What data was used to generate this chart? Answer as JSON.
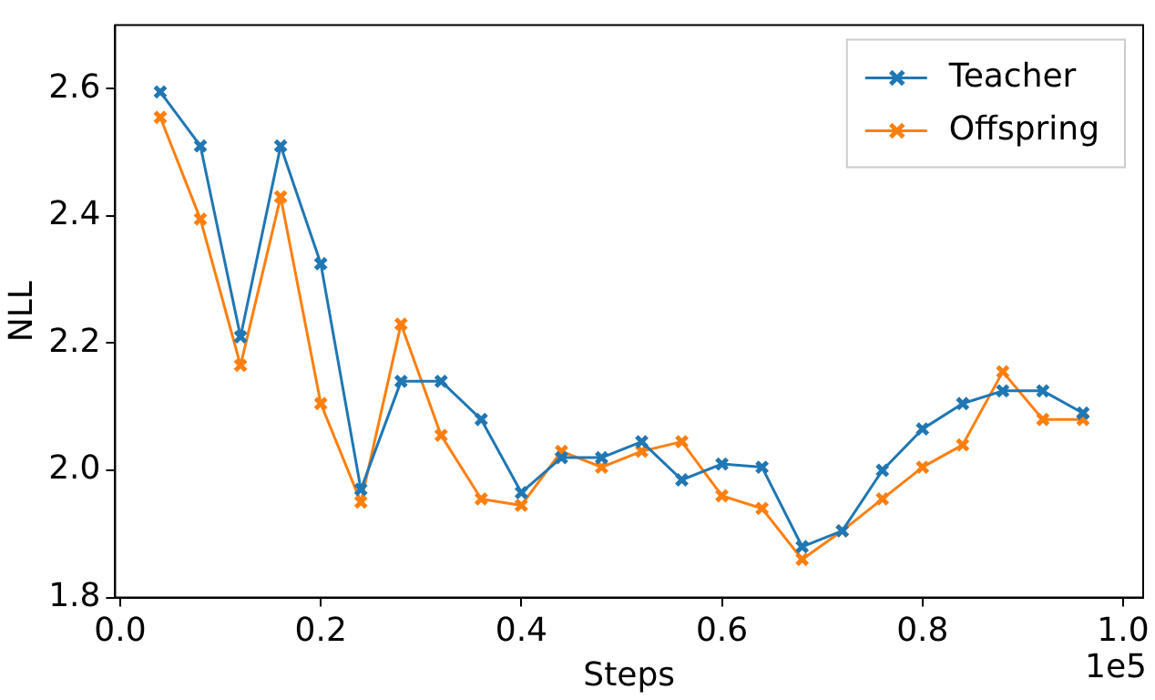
{
  "chart_data": {
    "type": "line",
    "xlabel": "Steps",
    "ylabel": "NLL",
    "annotations": [
      "1e5"
    ],
    "x": [
      0.04,
      0.08,
      0.12,
      0.16,
      0.2,
      0.24,
      0.28,
      0.32,
      0.36,
      0.4,
      0.44,
      0.48,
      0.52,
      0.56,
      0.6,
      0.64,
      0.68,
      0.72,
      0.76,
      0.8,
      0.84,
      0.88,
      0.92,
      0.96
    ],
    "series": [
      {
        "name": "Teacher",
        "color": "#1f77b4",
        "values": [
          2.595,
          2.51,
          2.21,
          2.51,
          2.325,
          1.97,
          2.14,
          2.14,
          2.08,
          1.965,
          2.02,
          2.02,
          2.045,
          1.985,
          2.01,
          2.005,
          1.88,
          1.905,
          2.0,
          2.065,
          2.105,
          2.125,
          2.125,
          2.09
        ]
      },
      {
        "name": "Offspring",
        "color": "#ff7f0e",
        "values": [
          2.555,
          2.395,
          2.165,
          2.43,
          2.105,
          1.95,
          2.23,
          2.055,
          1.955,
          1.945,
          2.03,
          2.005,
          2.03,
          2.045,
          1.96,
          1.94,
          1.86,
          1.905,
          1.955,
          2.005,
          2.04,
          2.155,
          2.08,
          2.08
        ]
      }
    ],
    "xlim": [
      -0.005,
      1.02
    ],
    "ylim": [
      1.8,
      2.7
    ],
    "xticks": [
      {
        "value": 0,
        "label": "0.0"
      },
      {
        "value": 0.2,
        "label": "0.2"
      },
      {
        "value": 0.4,
        "label": "0.4"
      },
      {
        "value": 0.6,
        "label": "0.6"
      },
      {
        "value": 0.8,
        "label": "0.8"
      },
      {
        "value": 1,
        "label": "1.0"
      }
    ],
    "yticks": [
      {
        "value": 1.8,
        "label": "1.8"
      },
      {
        "value": 2.0,
        "label": "2.0"
      },
      {
        "value": 2.2,
        "label": "2.2"
      },
      {
        "value": 2.4,
        "label": "2.4"
      },
      {
        "value": 2.6,
        "label": "2.6"
      }
    ],
    "legend": "top right",
    "marker": "cross",
    "line_style": "solid"
  }
}
